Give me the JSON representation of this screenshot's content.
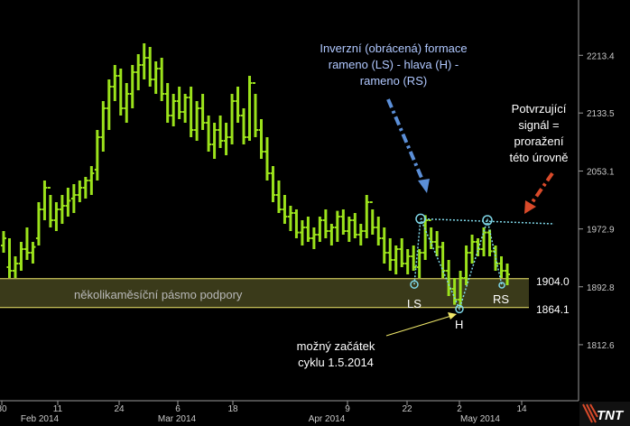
{
  "colors": {
    "background": "#000000",
    "bars": "#9be21b",
    "support_zone_fill": "#3a3a1a",
    "support_lines": "#f0e86a",
    "neckline": "#7fd7e8",
    "blue_arrow": "#5b8fd8",
    "red_arrow": "#d94a2a",
    "yellow_arrow": "#f0e86a",
    "axis": "#9a9a9a"
  },
  "chart_data": {
    "type": "ohlc",
    "instrument_note": "",
    "y_ticks": [
      "2213.4",
      "2133.5",
      "2053.1",
      "1972.9",
      "1892.8",
      "1812.6"
    ],
    "y_tick_values": [
      2213.4,
      2133.5,
      2053.1,
      1972.9,
      1892.8,
      1812.6
    ],
    "ylim": [
      1735,
      2290
    ],
    "x_ticks": [
      "30",
      "11",
      "24",
      "6",
      "18",
      "9",
      "22",
      "2",
      "14"
    ],
    "x_month_labels": [
      "Feb 2014",
      "Mar 2014",
      "Apr 2014",
      "May 2014"
    ],
    "price_levels": [
      {
        "label": "1904.0",
        "value": 1904.0
      },
      {
        "label": "1864.1",
        "value": 1864.1
      }
    ],
    "support_zone": {
      "low": 1864.1,
      "high": 1904.0,
      "label": "několikaměsíční pásmo podpory"
    },
    "neckline": {
      "from_value": 1987,
      "to_value": 1980
    },
    "pattern_points": [
      {
        "label": "LS",
        "value": 1896
      },
      {
        "label": "H",
        "value": 1862
      },
      {
        "label": "RS",
        "value": 1895
      }
    ],
    "annotations": {
      "pattern": [
        "Inverzní (obrácená) formace",
        "rameno (LS) - hlava (H) -",
        "rameno (RS)"
      ],
      "signal": [
        "Potvrzující",
        "signál =",
        "proražení",
        "této úrovně"
      ],
      "cycle": [
        "možný začátek",
        "cyklu 1.5.2014"
      ]
    },
    "series": [
      {
        "values": [
          [
            1950,
            1970,
            1940,
            1960
          ],
          [
            1920,
            1960,
            1905,
            1915
          ],
          [
            1915,
            1935,
            1905,
            1925
          ],
          [
            1925,
            1955,
            1915,
            1945
          ],
          [
            1945,
            1975,
            1930,
            1940
          ],
          [
            1940,
            1955,
            1925,
            1948
          ],
          [
            1960,
            2010,
            1950,
            2000
          ],
          [
            2000,
            2040,
            1985,
            2030
          ],
          [
            2030,
            2020,
            1975,
            1985
          ],
          [
            1985,
            2010,
            1970,
            2000
          ],
          [
            2000,
            2020,
            1980,
            2005
          ],
          [
            2005,
            2030,
            1990,
            2012
          ],
          [
            2015,
            2035,
            1995,
            2020
          ],
          [
            2020,
            2040,
            2010,
            2030
          ],
          [
            2030,
            2045,
            2015,
            2040
          ],
          [
            2040,
            2060,
            2020,
            2050
          ],
          [
            2055,
            2110,
            2040,
            2100
          ],
          [
            2100,
            2150,
            2080,
            2140
          ],
          [
            2140,
            2180,
            2110,
            2170
          ],
          [
            2170,
            2200,
            2150,
            2185
          ],
          [
            2185,
            2195,
            2130,
            2140
          ],
          [
            2140,
            2175,
            2120,
            2160
          ],
          [
            2160,
            2200,
            2140,
            2190
          ],
          [
            2190,
            2215,
            2165,
            2200
          ],
          [
            2200,
            2230,
            2180,
            2210
          ],
          [
            2210,
            2225,
            2170,
            2180
          ],
          [
            2180,
            2205,
            2160,
            2195
          ],
          [
            2195,
            2210,
            2150,
            2160
          ],
          [
            2160,
            2175,
            2120,
            2130
          ],
          [
            2130,
            2160,
            2115,
            2150
          ],
          [
            2150,
            2170,
            2125,
            2135
          ],
          [
            2135,
            2160,
            2120,
            2155
          ],
          [
            2155,
            2170,
            2100,
            2110
          ],
          [
            2110,
            2150,
            2095,
            2140
          ],
          [
            2140,
            2160,
            2110,
            2120
          ],
          [
            2120,
            2130,
            2080,
            2090
          ],
          [
            2090,
            2120,
            2070,
            2110
          ],
          [
            2110,
            2130,
            2085,
            2095
          ],
          [
            2095,
            2120,
            2075,
            2100
          ],
          [
            2100,
            2160,
            2090,
            2150
          ],
          [
            2150,
            2170,
            2120,
            2130
          ],
          [
            2130,
            2140,
            2090,
            2100
          ],
          [
            2100,
            2185,
            2095,
            2175
          ],
          [
            2175,
            2160,
            2100,
            2110
          ],
          [
            2110,
            2125,
            2070,
            2080
          ],
          [
            2080,
            2100,
            2040,
            2050
          ],
          [
            2050,
            2060,
            2010,
            2020
          ],
          [
            2020,
            2040,
            1995,
            2000
          ],
          [
            2000,
            2020,
            1980,
            1990
          ],
          [
            1990,
            2005,
            1970,
            1995
          ],
          [
            1995,
            2000,
            1960,
            1968
          ],
          [
            1968,
            1985,
            1950,
            1975
          ],
          [
            1975,
            1990,
            1955,
            1960
          ],
          [
            1960,
            1975,
            1945,
            1965
          ],
          [
            1965,
            1990,
            1955,
            1985
          ],
          [
            1985,
            2000,
            1960,
            1970
          ],
          [
            1970,
            1980,
            1950,
            1975
          ],
          [
            1975,
            1998,
            1955,
            1990
          ],
          [
            1990,
            2000,
            1965,
            1970
          ],
          [
            1970,
            1990,
            1955,
            1985
          ],
          [
            1985,
            1995,
            1960,
            1965
          ],
          [
            1965,
            1980,
            1950,
            1970
          ],
          [
            1970,
            2020,
            1960,
            2010
          ],
          [
            2010,
            2000,
            1965,
            1975
          ],
          [
            1975,
            1990,
            1950,
            1960
          ],
          [
            1960,
            1975,
            1925,
            1940
          ],
          [
            1940,
            1960,
            1915,
            1930
          ],
          [
            1930,
            1950,
            1910,
            1945
          ],
          [
            1945,
            1960,
            1920,
            1925
          ],
          [
            1925,
            1945,
            1910,
            1935
          ],
          [
            1935,
            1950,
            1915,
            1920
          ],
          [
            1920,
            1945,
            1905,
            1940
          ],
          [
            1940,
            1992,
            1930,
            1985
          ],
          [
            1985,
            1975,
            1945,
            1955
          ],
          [
            1955,
            1970,
            1935,
            1948
          ],
          [
            1948,
            1955,
            1905,
            1915
          ],
          [
            1915,
            1930,
            1880,
            1890
          ],
          [
            1890,
            1905,
            1868,
            1875
          ],
          [
            1875,
            1915,
            1865,
            1905
          ],
          [
            1905,
            1950,
            1895,
            1940
          ],
          [
            1940,
            1965,
            1925,
            1955
          ],
          [
            1955,
            1960,
            1935,
            1945
          ],
          [
            1945,
            1975,
            1935,
            1968
          ],
          [
            1968,
            1972,
            1935,
            1942
          ],
          [
            1942,
            1950,
            1915,
            1925
          ],
          [
            1925,
            1935,
            1905,
            1915
          ],
          [
            1915,
            1925,
            1895,
            1910
          ]
        ]
      }
    ]
  },
  "logo": {
    "text": "TNT"
  }
}
